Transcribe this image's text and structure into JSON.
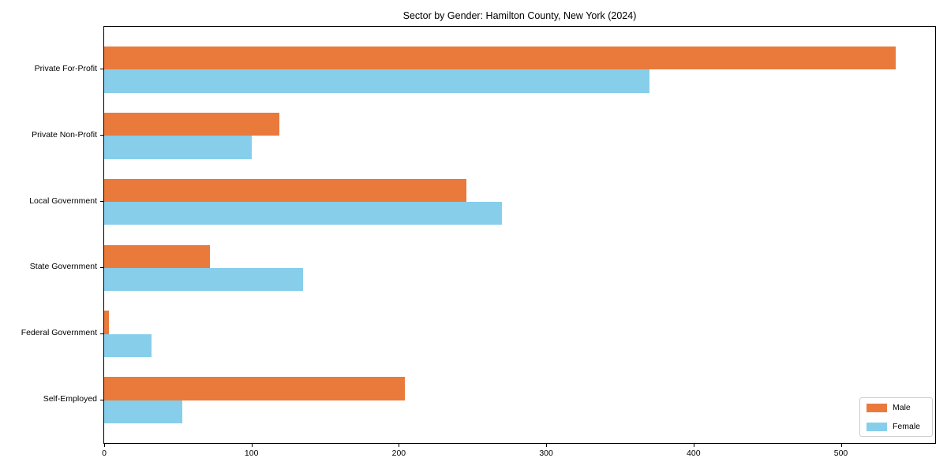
{
  "chart_data": {
    "type": "bar",
    "orientation": "horizontal",
    "title": "Sector by Gender: Hamilton County, New York (2024)",
    "categories": [
      "Private For-Profit",
      "Private Non-Profit",
      "Local Government",
      "State Government",
      "Federal Government",
      "Self-Employed"
    ],
    "series": [
      {
        "name": "Male",
        "color": "#E97A3C",
        "values": [
          537,
          119,
          246,
          72,
          3,
          204
        ]
      },
      {
        "name": "Female",
        "color": "#87CEEB",
        "values": [
          370,
          100,
          270,
          135,
          32,
          53
        ]
      }
    ],
    "xlabel": "",
    "ylabel": "",
    "xlim": [
      0,
      564
    ],
    "xticks": [
      0,
      100,
      200,
      300,
      400,
      500
    ],
    "grid": false,
    "legend": {
      "position": "lower right",
      "entries": [
        "Male",
        "Female"
      ]
    }
  }
}
